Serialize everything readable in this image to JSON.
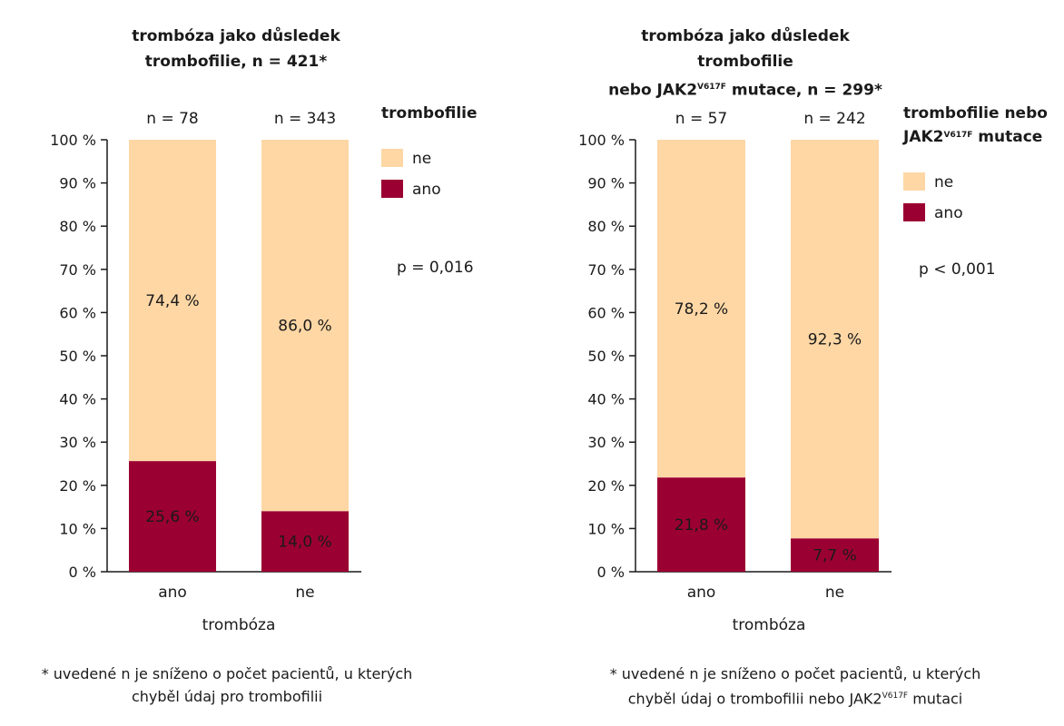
{
  "colors": {
    "ne": "#FED7A5",
    "ano": "#9B0032",
    "axis": "#1a1a1a"
  },
  "chart_data": [
    {
      "type": "bar",
      "stacked": true,
      "title_lines": [
        "trombóza jako důsledek",
        "trombofilie, n = 421*"
      ],
      "xlabel": "trombóza",
      "ylabel": "",
      "ylim": [
        0,
        100
      ],
      "yticks": [
        "0 %",
        "10 %",
        "20 %",
        "30 %",
        "40 %",
        "50 %",
        "60 %",
        "70 %",
        "80 %",
        "90 %",
        "100 %"
      ],
      "categories": [
        "ano",
        "ne"
      ],
      "n_labels": [
        "n = 78",
        "n = 343"
      ],
      "series": [
        {
          "name": "ano",
          "values": [
            25.6,
            14.0
          ],
          "labels": [
            "25,6 %",
            "14,0 %"
          ]
        },
        {
          "name": "ne",
          "values": [
            74.4,
            86.0
          ],
          "labels": [
            "74,4 %",
            "86,0 %"
          ]
        }
      ],
      "legend_title_lines": [
        "trombofilie"
      ],
      "legend_position": "right",
      "annotation": "p = 0,016",
      "footnote_lines": [
        "* uvedené n je sníženo o počet pacientů, u kterých",
        "chyběl údaj pro trombofilii"
      ]
    },
    {
      "type": "bar",
      "stacked": true,
      "title_lines": [
        "trombóza jako důsledek trombofilie",
        "nebo JAK2V617F mutace, n = 299*"
      ],
      "xlabel": "trombóza",
      "ylabel": "",
      "ylim": [
        0,
        100
      ],
      "yticks": [
        "0 %",
        "10 %",
        "20 %",
        "30 %",
        "40 %",
        "50 %",
        "60 %",
        "70 %",
        "80 %",
        "90 %",
        "100 %"
      ],
      "categories": [
        "ano",
        "ne"
      ],
      "n_labels": [
        "n = 57",
        "n = 242"
      ],
      "series": [
        {
          "name": "ano",
          "values": [
            21.8,
            7.7
          ],
          "labels": [
            "21,8 %",
            "7,7 %"
          ]
        },
        {
          "name": "ne",
          "values": [
            78.2,
            92.3
          ],
          "labels": [
            "78,2 %",
            "92,3 %"
          ]
        }
      ],
      "legend_title_lines": [
        "trombofilie nebo",
        "JAK2V617F mutace"
      ],
      "legend_position": "right",
      "annotation": "p < 0,001",
      "footnote_lines": [
        "* uvedené n je sníženo o počet pacientů, u kterých",
        "chyběl údaj o trombofilii nebo JAK2V617F mutaci"
      ]
    }
  ]
}
